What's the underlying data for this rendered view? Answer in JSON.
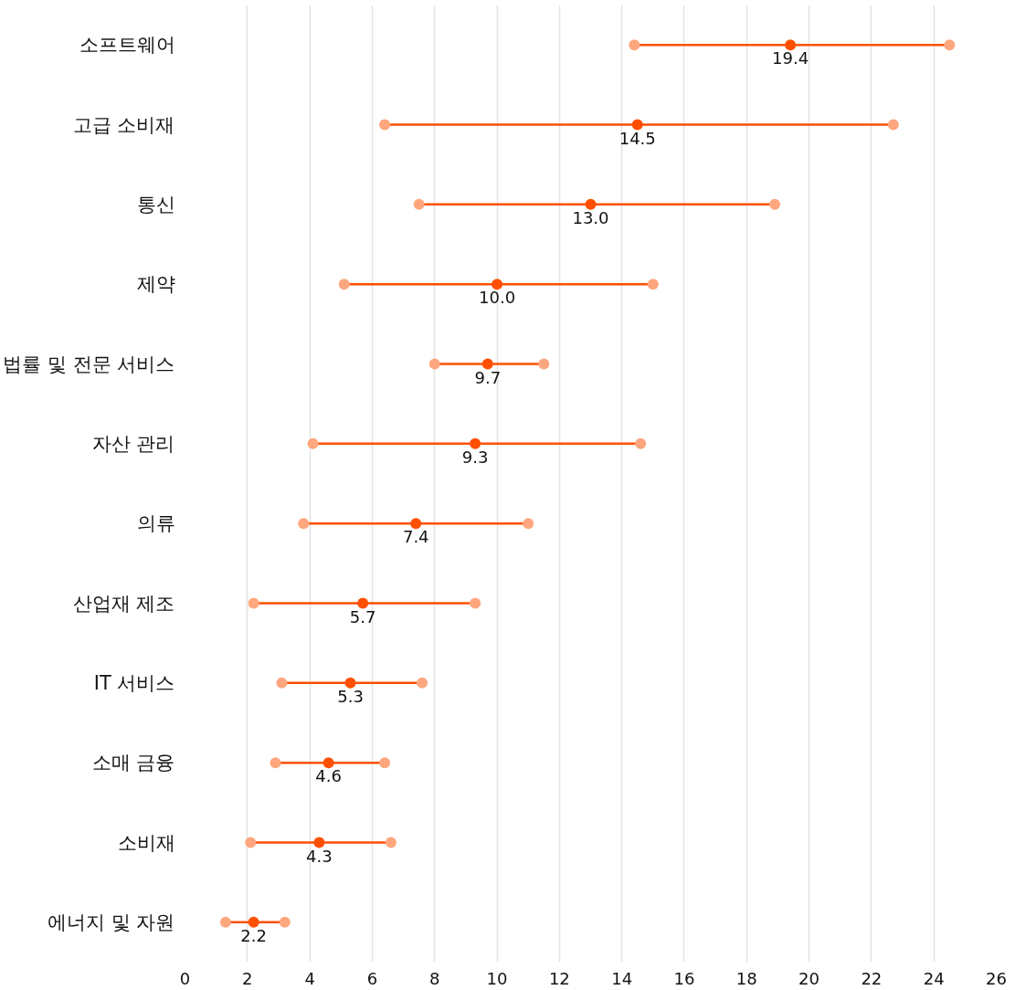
{
  "chart_data": {
    "type": "scatter",
    "orientation": "horizontal",
    "marker": "circle",
    "grid": "x",
    "categories": [
      "소프트웨어",
      "고급 소비재",
      "통신",
      "제약",
      "법률 및 전문 서비스",
      "자산 관리",
      "의류",
      "산업재 제조",
      "IT 서비스",
      "소매 금융",
      "소비재",
      "에너지 및 자원"
    ],
    "series": [
      {
        "color": "#fea77f",
        "values": [
          14.4,
          6.4,
          7.5,
          5.1,
          8.0,
          4.1,
          3.8,
          2.2,
          3.1,
          2.9,
          2.1,
          1.3
        ]
      },
      {
        "color": "#fea77f",
        "values": [
          24.5,
          22.7,
          18.9,
          15.0,
          11.5,
          14.6,
          11.0,
          9.3,
          7.6,
          6.4,
          6.6,
          3.2
        ]
      },
      {
        "color": "#fe5000",
        "values": [
          19.4,
          14.5,
          13.0,
          10.0,
          9.7,
          9.3,
          7.4,
          5.7,
          5.3,
          4.6,
          4.3,
          2.2
        ],
        "value_labels": [
          "19.4",
          "14.5",
          "13.0",
          "10.0",
          "9.7",
          "9.3",
          "7.4",
          "5.7",
          "5.3",
          "4.6",
          "4.3",
          "2.2"
        ]
      }
    ],
    "xlim": [
      0,
      26
    ],
    "xticks": [
      0,
      2,
      4,
      6,
      8,
      10,
      12,
      14,
      16,
      18,
      20,
      22,
      24,
      26
    ]
  }
}
